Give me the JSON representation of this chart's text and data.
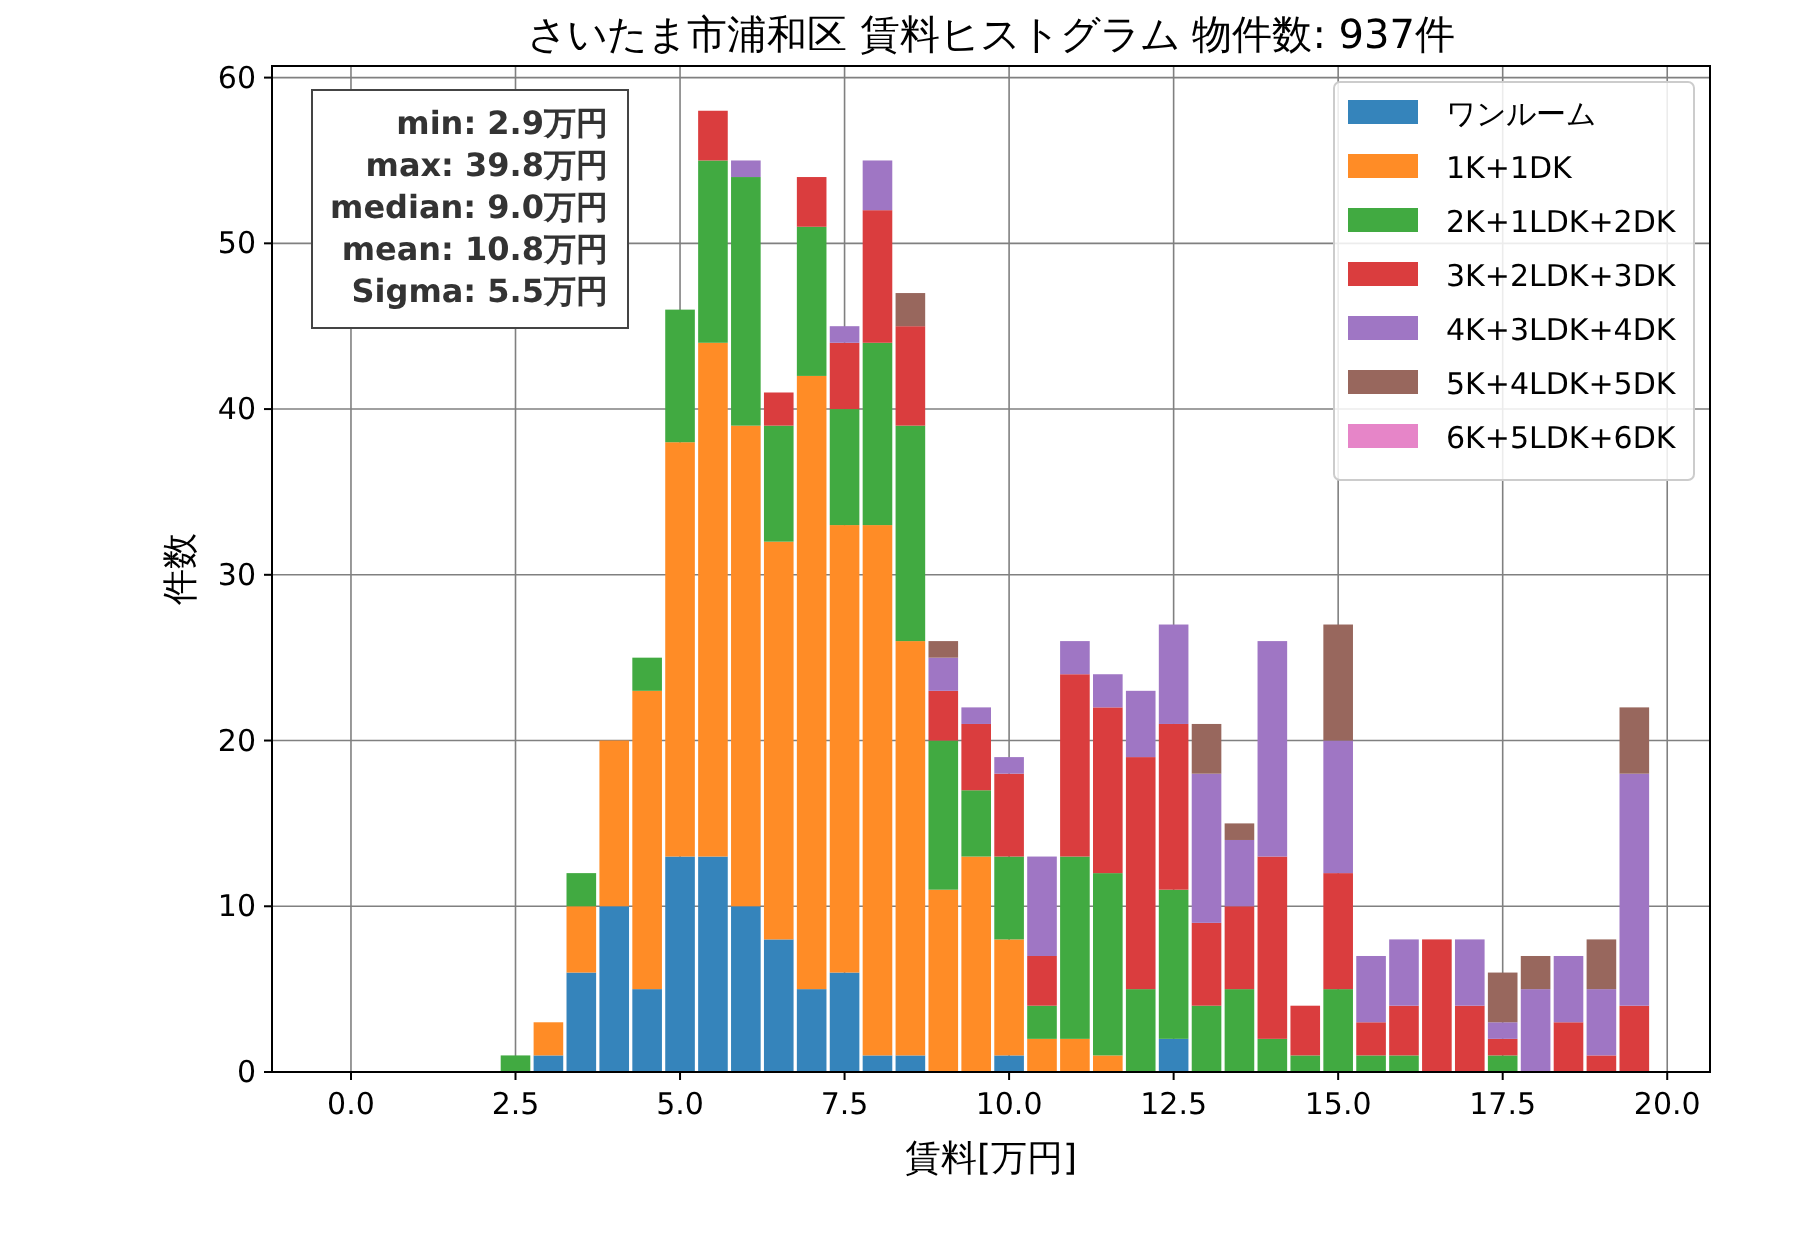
{
  "chart_data": {
    "type": "bar",
    "title": "さいたま市浦和区 賃料ヒストグラム  物件数: 937件",
    "xlabel": "賃料[万円]",
    "ylabel": "件数",
    "x": [
      2.5,
      3,
      3.5,
      4,
      4.5,
      5,
      5.5,
      6,
      6.5,
      7,
      7.5,
      8,
      8.5,
      9,
      9.5,
      10,
      10.5,
      11,
      11.5,
      12,
      12.5,
      13,
      13.5,
      14,
      14.5,
      15,
      15.5,
      16,
      16.5,
      17,
      17.5,
      18,
      18.5,
      19,
      19.5
    ],
    "stacked": true,
    "series": [
      {
        "name": "ワンルーム",
        "color": "#3584bb",
        "values": [
          0,
          1,
          6,
          10,
          5,
          13,
          13,
          10,
          8,
          5,
          6,
          1,
          1,
          0,
          0,
          1,
          0,
          0,
          0,
          0,
          2,
          0,
          0,
          0,
          0,
          0,
          0,
          0,
          0,
          0,
          0,
          0,
          0,
          0,
          0
        ]
      },
      {
        "name": "1K+1DK",
        "color": "#ff8c26",
        "values": [
          0,
          2,
          4,
          10,
          18,
          25,
          31,
          29,
          24,
          37,
          27,
          32,
          25,
          11,
          13,
          7,
          2,
          2,
          1,
          0,
          0,
          0,
          0,
          0,
          0,
          0,
          0,
          0,
          0,
          0,
          0,
          0,
          0,
          0,
          0
        ]
      },
      {
        "name": "2K+1LDK+2DK",
        "color": "#41aa41",
        "values": [
          1,
          0,
          2,
          0,
          2,
          8,
          11,
          15,
          7,
          9,
          7,
          11,
          13,
          9,
          4,
          5,
          2,
          11,
          11,
          5,
          9,
          4,
          5,
          2,
          1,
          5,
          1,
          1,
          0,
          0,
          1,
          0,
          0,
          0,
          0
        ]
      },
      {
        "name": "3K+2LDK+3DK",
        "color": "#da3d3e",
        "values": [
          0,
          0,
          0,
          0,
          0,
          0,
          3,
          0,
          2,
          3,
          4,
          8,
          6,
          3,
          4,
          5,
          3,
          11,
          10,
          14,
          10,
          5,
          5,
          11,
          3,
          7,
          2,
          3,
          8,
          4,
          1,
          0,
          3,
          1,
          4
        ]
      },
      {
        "name": "4K+3LDK+4DK",
        "color": "#9f76c4",
        "values": [
          0,
          0,
          0,
          0,
          0,
          0,
          0,
          1,
          0,
          0,
          1,
          3,
          0,
          2,
          1,
          1,
          6,
          2,
          2,
          4,
          6,
          9,
          4,
          13,
          0,
          8,
          4,
          4,
          0,
          4,
          1,
          5,
          4,
          4,
          14
        ]
      },
      {
        "name": "5K+4LDK+5DK",
        "color": "#98675d",
        "values": [
          0,
          0,
          0,
          0,
          0,
          0,
          0,
          0,
          0,
          0,
          0,
          0,
          2,
          1,
          0,
          0,
          0,
          0,
          0,
          0,
          0,
          3,
          1,
          0,
          0,
          7,
          0,
          0,
          0,
          0,
          3,
          2,
          0,
          3,
          4
        ]
      },
      {
        "name": "6K+5LDK+6DK",
        "color": "#e685c8",
        "values": [
          0,
          0,
          0,
          0,
          0,
          0,
          0,
          0,
          0,
          0,
          0,
          0,
          0,
          0,
          0,
          0,
          0,
          0,
          0,
          0,
          0,
          0,
          0,
          0,
          0,
          0,
          0,
          0,
          0,
          0,
          0,
          0,
          0,
          0,
          0
        ]
      }
    ],
    "xlim": [
      -1.2,
      20.65
    ],
    "ylim": [
      0,
      60.7
    ],
    "xticks": [
      {
        "value": 0,
        "label": "0.0"
      },
      {
        "value": 2.5,
        "label": "2.5"
      },
      {
        "value": 5,
        "label": "5.0"
      },
      {
        "value": 7.5,
        "label": "7.5"
      },
      {
        "value": 10,
        "label": "10.0"
      },
      {
        "value": 12.5,
        "label": "12.5"
      },
      {
        "value": 15,
        "label": "15.0"
      },
      {
        "value": 17.5,
        "label": "17.5"
      },
      {
        "value": 20,
        "label": "20.0"
      }
    ],
    "yticks": [
      0,
      10,
      20,
      30,
      40,
      50,
      60
    ],
    "grid": true,
    "legend": "top right",
    "annotations": [
      "min: 2.9万円",
      "max: 39.8万円",
      "median: 9.0万円",
      "mean: 10.8万円",
      "Sigma: 5.5万円"
    ]
  }
}
